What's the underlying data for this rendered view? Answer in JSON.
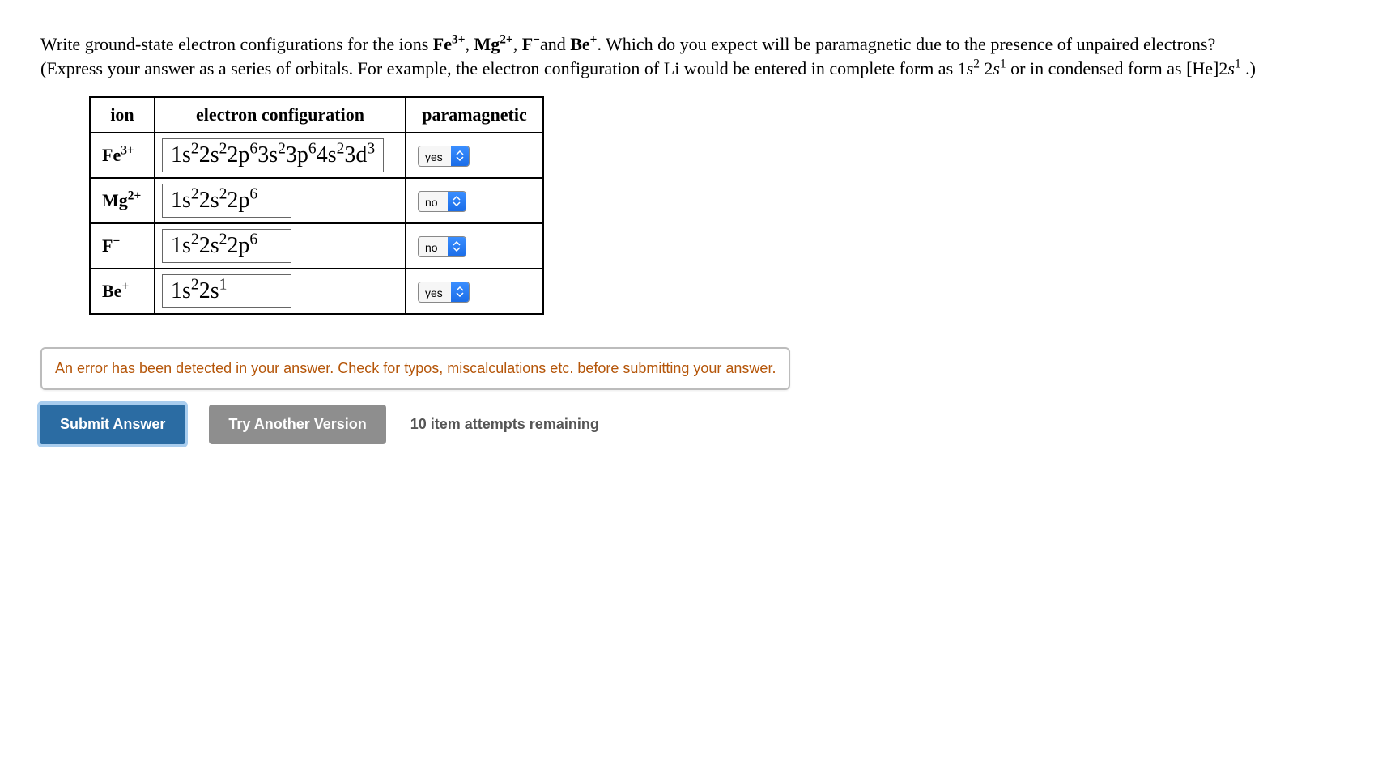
{
  "question": {
    "line1_pre": "Write ground-state electron configurations for the ions ",
    "ion1_html": "Fe<sup>3+</sup>",
    "sep1": ", ",
    "ion2_html": "Mg<sup>2+</sup>",
    "sep2": ", ",
    "ion3_html": "F<sup>−</sup>",
    "and": "and ",
    "ion4_html": "Be<sup>+</sup>",
    "line1_post": ". Which do you expect will be paramagnetic due to the presence of unpaired electrons?",
    "line2_pre": "(Express your answer as a series of orbitals. For example, the electron configuration of Li would be entered in complete form as ",
    "ex1_html": "1<i>s</i><sup>2</sup> 2<i>s</i><sup>1</sup>",
    "line2_mid": " or in condensed form as ",
    "ex2_html": "[He]2<i>s</i><sup>1</sup>",
    "line2_post": ".)"
  },
  "table": {
    "headers": {
      "ion": "ion",
      "ec": "electron configuration",
      "para": "paramagnetic"
    },
    "rows": [
      {
        "ion_html": "Fe<sup>3+</sup>",
        "ec_html": "1s<sup>2</sup>2s<sup>2</sup>2p<sup>6</sup>3s<sup>2</sup>3p<sup>6</sup>4s<sup>2</sup>3d<sup>3</sup>",
        "para": "yes"
      },
      {
        "ion_html": "Mg<sup>2+</sup>",
        "ec_html": "1s<sup>2</sup>2s<sup>2</sup>2p<sup>6</sup>",
        "para": "no"
      },
      {
        "ion_html": "F<sup>−</sup>",
        "ec_html": "1s<sup>2</sup>2s<sup>2</sup>2p<sup>6</sup>",
        "para": "no"
      },
      {
        "ion_html": "Be<sup>+</sup>",
        "ec_html": "1s<sup>2</sup>2s<sup>1</sup>",
        "para": "yes"
      }
    ]
  },
  "error_message": "An error has been detected in your answer. Check for typos, miscalculations etc. before submitting your answer.",
  "buttons": {
    "submit": "Submit Answer",
    "try_another": "Try Another Version",
    "attempts": "10 item attempts remaining"
  },
  "colors": {
    "error_text": "#b5560a",
    "primary_btn": "#2b6ca3",
    "primary_focus_ring": "#a9cdee",
    "secondary_btn": "#8e8e8e",
    "stepper_top": "#3a8eff",
    "stepper_bottom": "#1b6de8"
  }
}
